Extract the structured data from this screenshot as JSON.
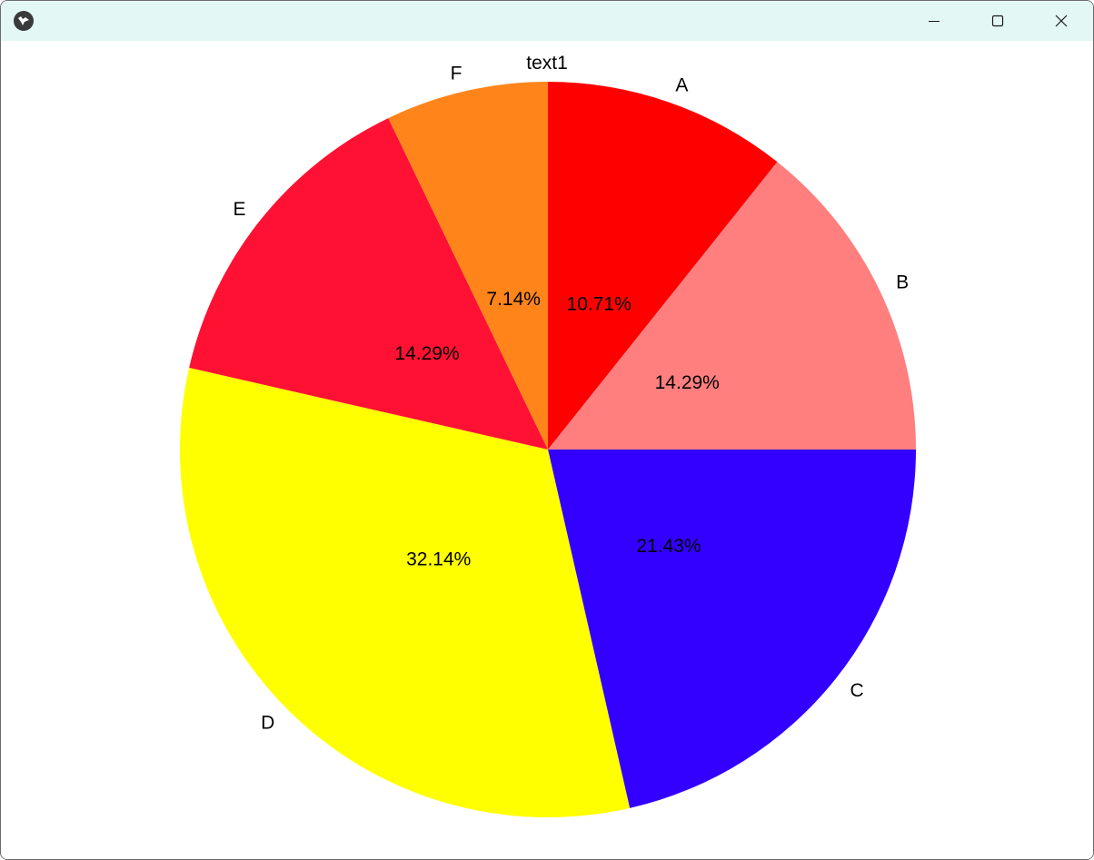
{
  "window": {
    "minimize_icon": "minimize-icon",
    "maximize_icon": "maximize-icon",
    "close_icon": "close-icon"
  },
  "chart_data": {
    "type": "pie",
    "title": "text1",
    "start_angle_deg": 90,
    "direction": "clockwise",
    "slices": [
      {
        "label": "A",
        "value": 10.71,
        "pct_label": "10.71%",
        "color": "#ff0000"
      },
      {
        "label": "B",
        "value": 14.29,
        "pct_label": "14.29%",
        "color": "#ff7f7f"
      },
      {
        "label": "C",
        "value": 21.43,
        "pct_label": "21.43%",
        "color": "#3300ff"
      },
      {
        "label": "D",
        "value": 32.14,
        "pct_label": "32.14%",
        "color": "#ffff00"
      },
      {
        "label": "E",
        "value": 14.29,
        "pct_label": "14.29%",
        "color": "#ff1133"
      },
      {
        "label": "F",
        "value": 7.14,
        "pct_label": "7.14%",
        "color": "#ff851b"
      }
    ]
  }
}
